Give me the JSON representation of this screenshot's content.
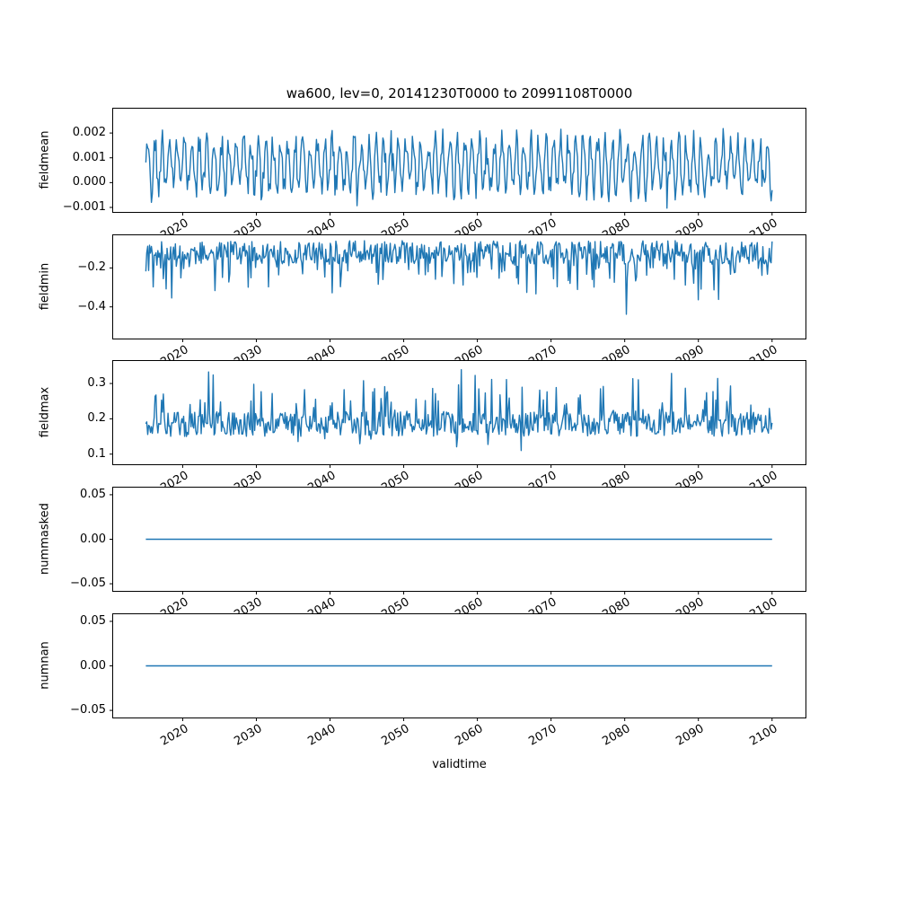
{
  "chart_data": {
    "type": "line",
    "title": "wa600, lev=0, 20141230T0000 to 20991108T0000",
    "xlabel": "validtime",
    "line_color": "#1f77b4",
    "x_start": 2015.0,
    "x_end": 2100.0,
    "xlim": [
      2010.5,
      2104.6
    ],
    "xticks": [
      2020,
      2030,
      2040,
      2050,
      2060,
      2070,
      2080,
      2090,
      2100
    ],
    "xtick_labels": [
      "2020",
      "2030",
      "2040",
      "2050",
      "2060",
      "2070",
      "2080",
      "2090",
      "2100"
    ],
    "n_points": 680,
    "grid": false,
    "legend": "none",
    "subplots": [
      {
        "ylabel": "fieldmean",
        "ylim": [
          -0.0012,
          0.003
        ],
        "yticks": [
          0.002,
          0.001,
          0.0,
          -0.001
        ],
        "ytick_labels": [
          "0.002",
          "0.001",
          "0.000",
          "−0.001"
        ],
        "value_range": [
          -0.001,
          0.0024
        ],
        "description": "dense noisy annual oscillation between about -0.001 and 0.0024",
        "series": {
          "kind": "noisy",
          "seed": 42,
          "base": 0.0007,
          "season_amp": 0.00095,
          "points_per_cycle": 8.0,
          "noise_amp": 0.00055,
          "spike_prob": 0.05,
          "spike_amp": -0.0007,
          "deep_prob": 0.006,
          "deep_amp": -0.0008,
          "clamp": [
            -0.00103,
            0.00243
          ]
        }
      },
      {
        "ylabel": "fieldmin",
        "ylim": [
          -0.565,
          -0.03
        ],
        "yticks": [
          -0.2,
          -0.4
        ],
        "ytick_labels": [
          "−0.2",
          "−0.4"
        ],
        "value_range": [
          -0.56,
          -0.045
        ],
        "description": "noisy band near -0.05 to -0.2 with frequent downward spikes to -0.45, rare to -0.55",
        "series": {
          "kind": "noisy",
          "seed": 7,
          "base": -0.06,
          "band": -0.12,
          "spike_prob": 0.25,
          "spike_amp": -0.16,
          "deep_prob": 0.015,
          "deep_amp": -0.24,
          "clamp": [
            -0.555,
            -0.045
          ]
        }
      },
      {
        "ylabel": "fieldmax",
        "ylim": [
          0.07,
          0.365
        ],
        "yticks": [
          0.3,
          0.2,
          0.1
        ],
        "ytick_labels": [
          "0.3",
          "0.2",
          "0.1"
        ],
        "value_range": [
          0.098,
          0.345
        ],
        "description": "noisy band 0.15-0.22 with frequent upward spikes to 0.34, rare dips to 0.1",
        "series": {
          "kind": "noisy",
          "seed": 11,
          "base": 0.15,
          "band": 0.07,
          "spike_prob": 0.15,
          "spike_amp": 0.13,
          "deep_prob": 0.008,
          "deep_amp": -0.06,
          "clamp": [
            0.098,
            0.345
          ]
        }
      },
      {
        "ylabel": "nummasked",
        "ylim": [
          -0.0585,
          0.0585
        ],
        "yticks": [
          0.05,
          0.0,
          -0.05
        ],
        "ytick_labels": [
          "0.05",
          "0.00",
          "−0.05"
        ],
        "value_range": [
          0,
          0
        ],
        "description": "constant zero line",
        "series": {
          "kind": "constant",
          "value": 0.0
        }
      },
      {
        "ylabel": "numnan",
        "ylim": [
          -0.0585,
          0.0585
        ],
        "yticks": [
          0.05,
          0.0,
          -0.05
        ],
        "ytick_labels": [
          "0.05",
          "0.00",
          "−0.05"
        ],
        "value_range": [
          0,
          0
        ],
        "description": "constant zero line",
        "series": {
          "kind": "constant",
          "value": 0.0
        }
      }
    ]
  }
}
